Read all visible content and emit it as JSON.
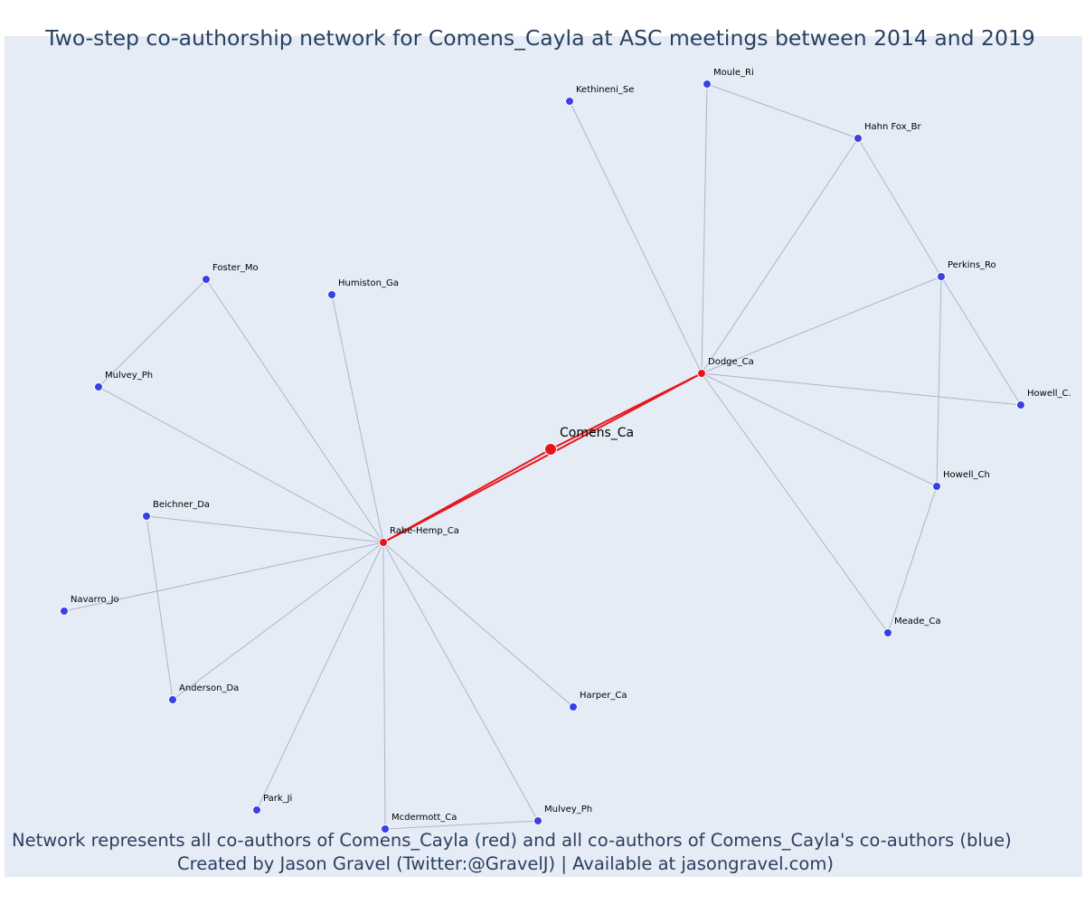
{
  "title": "Two-step co-authorship network for Comens_Cayla at ASC meetings between 2014 and 2019",
  "footer": {
    "line1": "Network represents all co-authors of Comens_Cayla (red) and all co-authors of Comens_Cayla's co-authors (blue)",
    "line2": "Created by Jason Gravel (Twitter:@GravelJ) | Available at jasongravel.com)"
  },
  "colors": {
    "background": "#e5ecf6",
    "edge": "#b0b4c8",
    "strong_edge": "#e8141c",
    "red_node": "#e8141c",
    "blue_node": "#3b3fe6",
    "node_stroke": "#ffffff",
    "text": "#2a3f5f"
  },
  "nodes": [
    {
      "id": "comens",
      "label": "Comens_Ca",
      "group": "ego"
    },
    {
      "id": "dodge",
      "label": "Dodge_Ca",
      "group": "red"
    },
    {
      "id": "rabe",
      "label": "Rabe-Hemp_Ca",
      "group": "red"
    },
    {
      "id": "kethineni",
      "label": "Kethineni_Se",
      "group": "blue"
    },
    {
      "id": "moule",
      "label": "Moule_Ri",
      "group": "blue"
    },
    {
      "id": "hahnfox",
      "label": "Hahn Fox_Br",
      "group": "blue"
    },
    {
      "id": "perkins",
      "label": "Perkins_Ro",
      "group": "blue"
    },
    {
      "id": "howellc",
      "label": "Howell_C.",
      "group": "blue"
    },
    {
      "id": "howellch",
      "label": "Howell_Ch",
      "group": "blue"
    },
    {
      "id": "meade",
      "label": "Meade_Ca",
      "group": "blue"
    },
    {
      "id": "foster",
      "label": "Foster_Mo",
      "group": "blue"
    },
    {
      "id": "humiston",
      "label": "Humiston_Ga",
      "group": "blue"
    },
    {
      "id": "mulvey1",
      "label": "Mulvey_Ph",
      "group": "blue"
    },
    {
      "id": "beichner",
      "label": "Beichner_Da",
      "group": "blue"
    },
    {
      "id": "navarro",
      "label": "Navarro_Jo",
      "group": "blue"
    },
    {
      "id": "anderson",
      "label": "Anderson_Da",
      "group": "blue"
    },
    {
      "id": "harper",
      "label": "Harper_Ca",
      "group": "blue"
    },
    {
      "id": "park",
      "label": "Park_Ji",
      "group": "blue"
    },
    {
      "id": "mcdermott",
      "label": "Mcdermott_Ca",
      "group": "blue"
    },
    {
      "id": "mulvey2",
      "label": "Mulvey_Ph",
      "group": "blue"
    }
  ],
  "edges": [
    {
      "source": "comens",
      "target": "dodge",
      "strong": true
    },
    {
      "source": "comens",
      "target": "rabe",
      "strong": true
    },
    {
      "source": "rabe",
      "target": "dodge",
      "strong": true
    },
    {
      "source": "dodge",
      "target": "kethineni"
    },
    {
      "source": "dodge",
      "target": "moule"
    },
    {
      "source": "dodge",
      "target": "hahnfox"
    },
    {
      "source": "dodge",
      "target": "perkins"
    },
    {
      "source": "dodge",
      "target": "howellc"
    },
    {
      "source": "dodge",
      "target": "howellch"
    },
    {
      "source": "dodge",
      "target": "meade"
    },
    {
      "source": "moule",
      "target": "hahnfox"
    },
    {
      "source": "hahnfox",
      "target": "perkins"
    },
    {
      "source": "perkins",
      "target": "howellc"
    },
    {
      "source": "perkins",
      "target": "howellch"
    },
    {
      "source": "howellch",
      "target": "meade"
    },
    {
      "source": "rabe",
      "target": "foster"
    },
    {
      "source": "rabe",
      "target": "humiston"
    },
    {
      "source": "rabe",
      "target": "mulvey1"
    },
    {
      "source": "rabe",
      "target": "beichner"
    },
    {
      "source": "rabe",
      "target": "navarro"
    },
    {
      "source": "rabe",
      "target": "anderson"
    },
    {
      "source": "rabe",
      "target": "harper"
    },
    {
      "source": "rabe",
      "target": "park"
    },
    {
      "source": "rabe",
      "target": "mcdermott"
    },
    {
      "source": "rabe",
      "target": "mulvey2"
    },
    {
      "source": "foster",
      "target": "mulvey1"
    },
    {
      "source": "beichner",
      "target": "anderson"
    },
    {
      "source": "mcdermott",
      "target": "mulvey2"
    }
  ]
}
